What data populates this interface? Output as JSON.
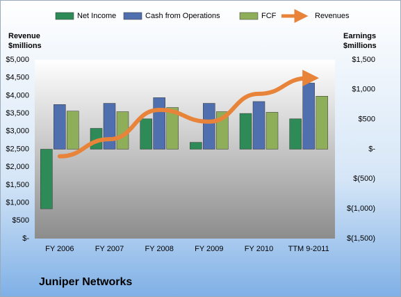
{
  "chart_data": {
    "type": "combo",
    "title": "Juniper Networks",
    "ylabel_lines": [
      "Revenue",
      "$millions"
    ],
    "y2label_lines": [
      "Earnings",
      "$millions"
    ],
    "categories": [
      "FY 2006",
      "FY 2007",
      "FY 2008",
      "FY 2009",
      "FY 2010",
      "TTM 9-2011"
    ],
    "series": [
      {
        "name": "Net Income",
        "type": "bar",
        "axis": "y2",
        "color": "#2e8b57",
        "values": [
          -1000,
          350,
          510,
          115,
          600,
          510
        ]
      },
      {
        "name": "Cash from Operations",
        "type": "bar",
        "axis": "y2",
        "color": "#4f6fae",
        "values": [
          750,
          770,
          865,
          770,
          800,
          1110
        ]
      },
      {
        "name": "FCF",
        "type": "bar",
        "axis": "y2",
        "color": "#8fae5a",
        "values": [
          640,
          630,
          700,
          630,
          620,
          890
        ]
      },
      {
        "name": "Revenues",
        "type": "line",
        "axis": "y",
        "color": "#e8833a",
        "values": [
          2300,
          2780,
          3600,
          3270,
          4050,
          4490
        ]
      }
    ],
    "ylim": [
      0,
      5000
    ],
    "yticks": [
      {
        "value": 0,
        "label": "$-"
      },
      {
        "value": 500,
        "label": "$500"
      },
      {
        "value": 1000,
        "label": "$1,000"
      },
      {
        "value": 1500,
        "label": "$1,500"
      },
      {
        "value": 2000,
        "label": "$2,000"
      },
      {
        "value": 2500,
        "label": "$2,500"
      },
      {
        "value": 3000,
        "label": "$3,000"
      },
      {
        "value": 3500,
        "label": "$3,500"
      },
      {
        "value": 4000,
        "label": "$4,000"
      },
      {
        "value": 4500,
        "label": "$4,500"
      },
      {
        "value": 5000,
        "label": "$5,000"
      }
    ],
    "y2lim": [
      -1500,
      1500
    ],
    "y2ticks": [
      {
        "value": -1500,
        "label": "$(1,500)"
      },
      {
        "value": -1000,
        "label": "$(1,000)"
      },
      {
        "value": -500,
        "label": "$(500)"
      },
      {
        "value": 0,
        "label": "$-"
      },
      {
        "value": 500,
        "label": "$500"
      },
      {
        "value": 1000,
        "label": "$1,000"
      },
      {
        "value": 1500,
        "label": "$1,500"
      }
    ]
  }
}
